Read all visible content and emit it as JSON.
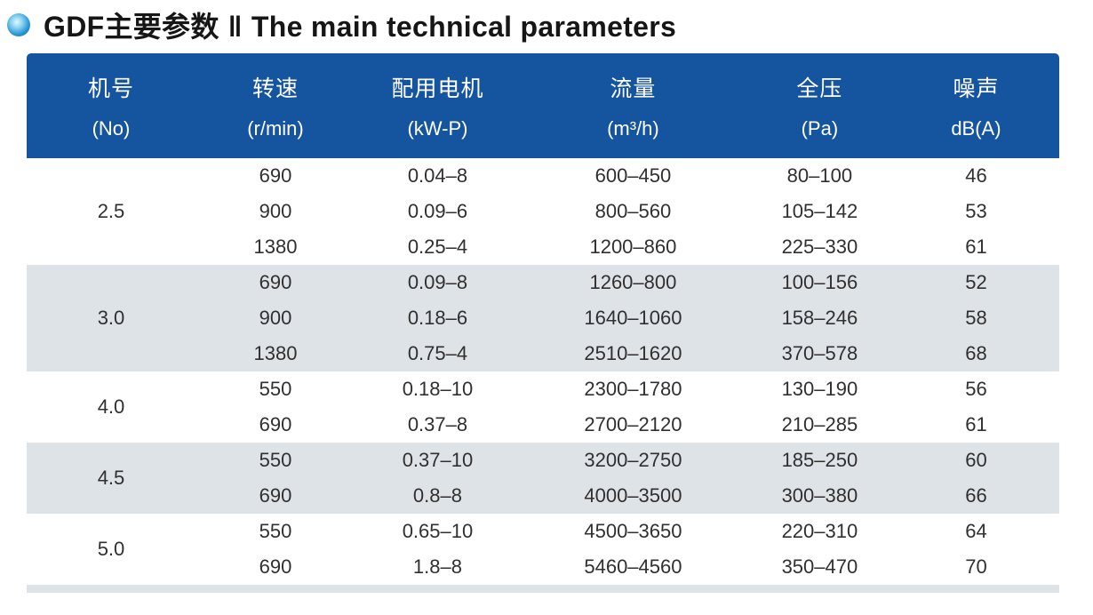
{
  "title": {
    "zh": "GDF主要参数",
    "separator": "‖",
    "en": "The main technical parameters"
  },
  "table": {
    "columns": [
      {
        "label_zh": "机号",
        "unit": "(No)"
      },
      {
        "label_zh": "转速",
        "unit": "(r/min)"
      },
      {
        "label_zh": "配用电机",
        "unit": "(kW-P)"
      },
      {
        "label_zh": "流量",
        "unit": "(m³/h)"
      },
      {
        "label_zh": "全压",
        "unit": "(Pa)"
      },
      {
        "label_zh": "噪声",
        "unit": "dB(A)"
      }
    ],
    "groups": [
      {
        "no": "2.5",
        "shaded": false,
        "rows": [
          [
            "690",
            "0.04–8",
            "600–450",
            "80–100",
            "46"
          ],
          [
            "900",
            "0.09–6",
            "800–560",
            "105–142",
            "53"
          ],
          [
            "1380",
            "0.25–4",
            "1200–860",
            "225–330",
            "61"
          ]
        ]
      },
      {
        "no": "3.0",
        "shaded": true,
        "rows": [
          [
            "690",
            "0.09–8",
            "1260–800",
            "100–156",
            "52"
          ],
          [
            "900",
            "0.18–6",
            "1640–1060",
            "158–246",
            "58"
          ],
          [
            "1380",
            "0.75–4",
            "2510–1620",
            "370–578",
            "68"
          ]
        ]
      },
      {
        "no": "4.0",
        "shaded": false,
        "rows": [
          [
            "550",
            "0.18–10",
            "2300–1780",
            "130–190",
            "56"
          ],
          [
            "690",
            "0.37–8",
            "2700–2120",
            "210–285",
            "61"
          ]
        ]
      },
      {
        "no": "4.5",
        "shaded": true,
        "rows": [
          [
            "550",
            "0.37–10",
            "3200–2750",
            "185–250",
            "60"
          ],
          [
            "690",
            "0.8–8",
            "4000–3500",
            "300–380",
            "66"
          ]
        ]
      },
      {
        "no": "5.0",
        "shaded": false,
        "rows": [
          [
            "550",
            "0.65–10",
            "4500–3650",
            "220–310",
            "64"
          ],
          [
            "690",
            "1.8–8",
            "5460–4560",
            "350–470",
            "70"
          ]
        ]
      }
    ]
  },
  "colors": {
    "header_bg": "#15549e",
    "shaded_row": "#dde3e7",
    "body_text": "#303030",
    "bullet_blue": "#1e8fd0"
  }
}
